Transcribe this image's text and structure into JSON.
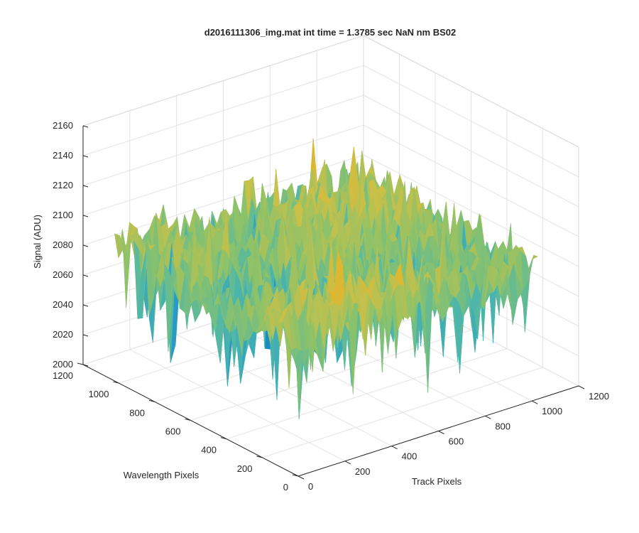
{
  "chart_data": {
    "type": "surface",
    "title": "d2016111306_img.mat int time = 1.3785 sec  NaN nm BS02",
    "xlabel": "Track Pixels",
    "ylabel": "Wavelength Pixels",
    "zlabel": "Signal (ADU)",
    "xlim": [
      0,
      1200
    ],
    "ylim": [
      0,
      1200
    ],
    "zlim": [
      2000,
      2160
    ],
    "xticks": [
      "0",
      "200",
      "400",
      "600",
      "800",
      "1000",
      "1200"
    ],
    "yticks": [
      "0",
      "200",
      "400",
      "600",
      "800",
      "1000",
      "1200"
    ],
    "zticks": [
      "2000",
      "2020",
      "2040",
      "2060",
      "2080",
      "2100",
      "2120",
      "2140",
      "2160"
    ],
    "data_extent": {
      "x": [
        0,
        1024
      ],
      "y": [
        0,
        1024
      ]
    },
    "signal_range_approx": [
      2010,
      2150
    ],
    "mean_signal_approx": 2085,
    "grid": true,
    "colormap": [
      "#0072bd",
      "#2a9fc7",
      "#4fb7a8",
      "#8cc26a",
      "#c8c049",
      "#edb120"
    ]
  }
}
